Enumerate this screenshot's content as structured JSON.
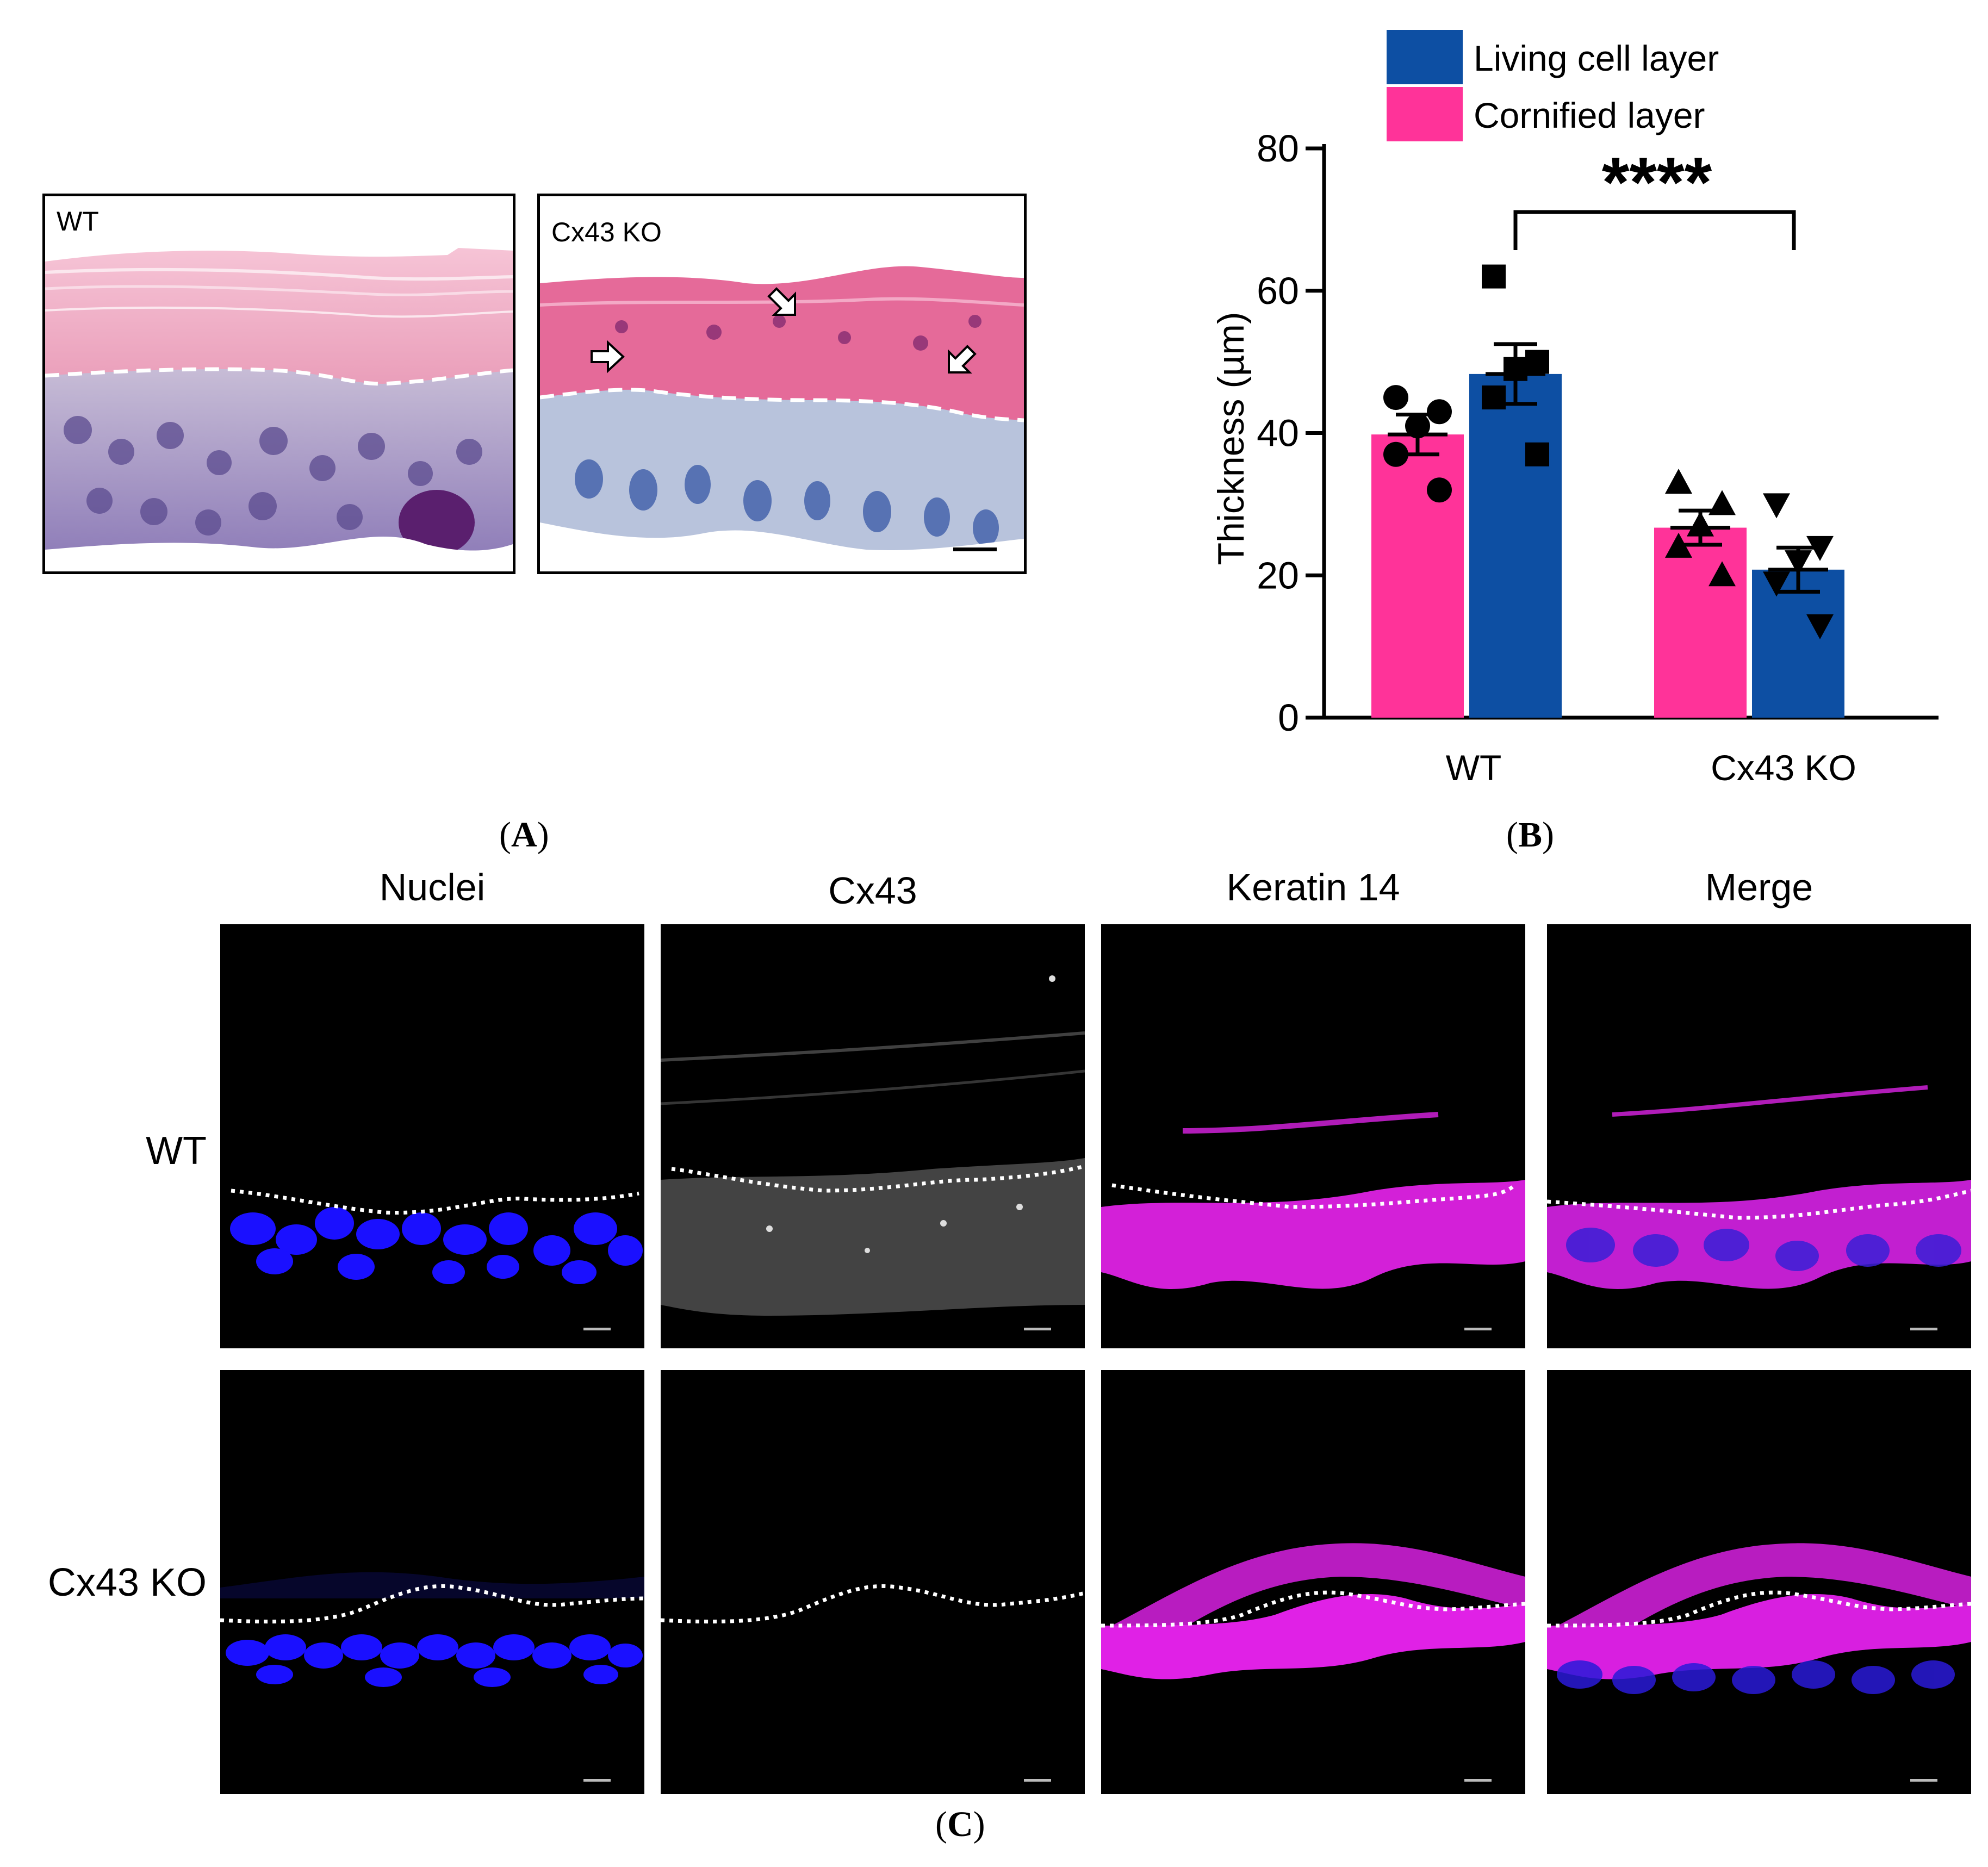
{
  "panel_a": {
    "tag_open": "(",
    "tag_letter": "A",
    "tag_close": ")",
    "images": [
      {
        "label": "WT"
      },
      {
        "label": "Cx43 KO"
      }
    ]
  },
  "panel_b": {
    "tag_open": "(",
    "tag_letter": "B",
    "tag_close": ")"
  },
  "panel_c": {
    "tag_open": "(",
    "tag_letter": "C",
    "tag_close": ")",
    "columns": [
      "Nuclei",
      "Cx43",
      "Keratin 14",
      "Merge"
    ],
    "rows": [
      "WT",
      "Cx43 KO"
    ]
  },
  "chart_data": {
    "type": "bar",
    "categories": [
      "WT",
      "Cx43 KO"
    ],
    "ylabel": "Thickness (µm)",
    "ylim": [
      0,
      80
    ],
    "yticks": [
      0,
      20,
      40,
      60,
      80
    ],
    "legend_position": "top",
    "significance": "****",
    "series": [
      {
        "name": "Cornified layer",
        "color": "#FF3399",
        "marker": "circle-triangle",
        "values": [
          39.8,
          26.7
        ],
        "sem": [
          2.8,
          2.4
        ],
        "points": [
          [
            45,
            43,
            41,
            37,
            32
          ],
          [
            33,
            30,
            27,
            24,
            20
          ]
        ]
      },
      {
        "name": "Living cell layer",
        "color": "#0D4FA3",
        "marker": "square-triangle-down",
        "values": [
          48.3,
          20.8
        ],
        "sem": [
          4.2,
          3.1
        ],
        "points": [
          [
            62,
            50,
            49,
            45,
            37
          ],
          [
            30,
            24,
            22,
            19,
            13
          ]
        ]
      }
    ]
  }
}
